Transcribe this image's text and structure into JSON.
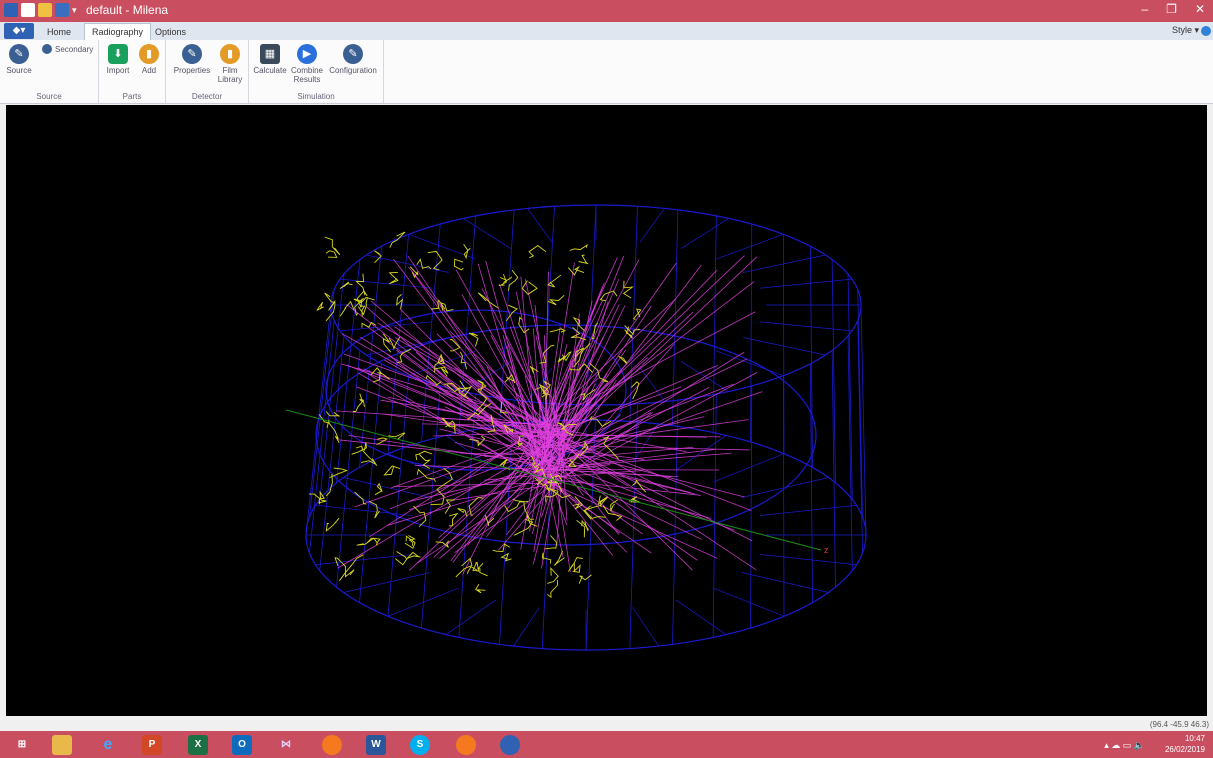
{
  "window": {
    "title": "default - Milena",
    "minimize": "–",
    "restore": "❐",
    "close": "✕"
  },
  "tabs": {
    "home": "Home",
    "radiography": "Radiography",
    "options": "Options",
    "style": "Style ▾"
  },
  "ribbon": {
    "source_btn": "Source",
    "secondary_btn": "Secondary",
    "source_group": "Source",
    "import_btn": "Import",
    "add_btn": "Add",
    "parts_group": "Parts",
    "properties_btn": "Properties",
    "film_library_btn": "Film Library",
    "detector_group": "Detector",
    "calculate_btn": "Calculate",
    "combine_btn": "Combine Results",
    "configuration_btn": "Configuration",
    "simulation_group": "Simulation"
  },
  "viewport": {
    "axis_label": "z"
  },
  "status": {
    "coords": "(96.4 -45.9 46.3)"
  },
  "taskbar": {
    "time": "10:47",
    "date": "26/02/2019"
  },
  "colors": {
    "titlebar": "#c94f60",
    "wireframe": "#1a1ad0",
    "tracks_primary": "#e040e0",
    "tracks_secondary": "#d8d820"
  }
}
